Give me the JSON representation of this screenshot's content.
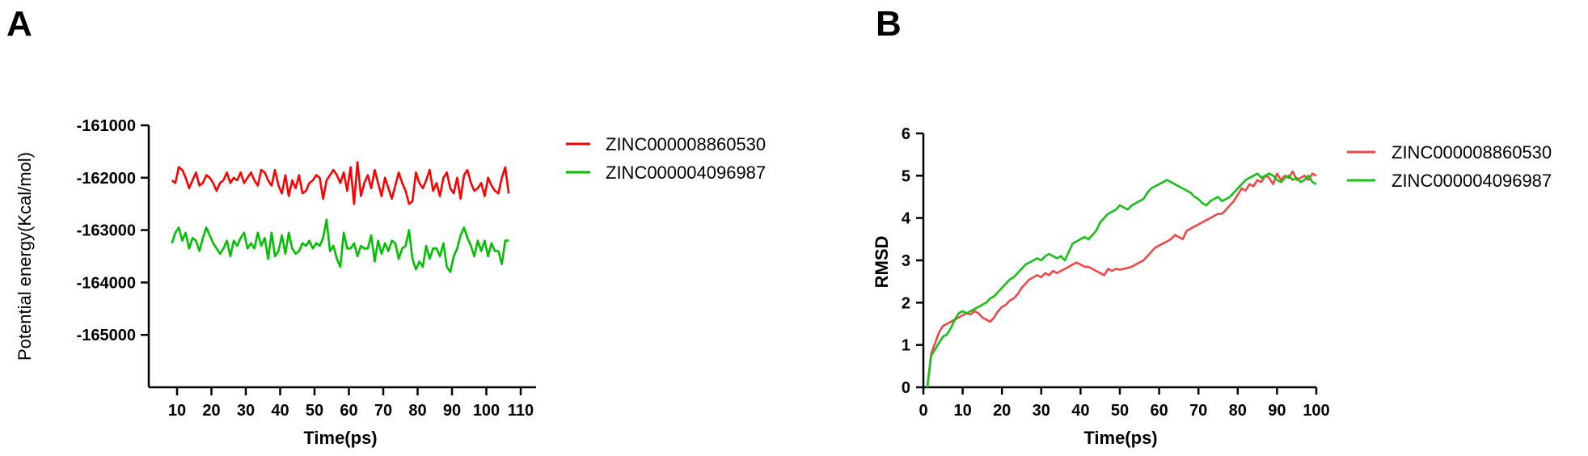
{
  "panels": {
    "a_letter": "A",
    "b_letter": "B"
  },
  "chart_data": [
    {
      "type": "line",
      "panel": "A",
      "xlabel": "Time(ps)",
      "ylabel": "Potential energy(Kcal/mol)",
      "xlim": [
        0,
        110
      ],
      "ylim": [
        -166000,
        -161000
      ],
      "xticks": [
        10,
        20,
        30,
        40,
        50,
        60,
        70,
        80,
        90,
        100,
        110
      ],
      "yticks": [
        -161000,
        -162000,
        -163000,
        -164000,
        -165000
      ],
      "legend_position": "right",
      "series": [
        {
          "name": "ZINC000008860530",
          "color": "#ff0000",
          "x": [
            8.5,
            9.5,
            10.5,
            11.5,
            12.5,
            13.5,
            14.5,
            15.5,
            16.5,
            17.5,
            18.5,
            19.5,
            20.5,
            21.5,
            22.5,
            23.5,
            24.5,
            25.5,
            26.5,
            27.5,
            28.5,
            29.5,
            30.5,
            31.5,
            32.5,
            33.5,
            34.5,
            35.5,
            36.5,
            37.5,
            38.5,
            39.5,
            40.5,
            41.5,
            42.5,
            43.5,
            44.5,
            45.5,
            46.5,
            47.5,
            48.5,
            49.5,
            50.5,
            51.5,
            52.5,
            53.5,
            54.5,
            55.5,
            56.5,
            57.5,
            58.5,
            59.5,
            60.5,
            61.5,
            62.5,
            63.5,
            64.5,
            65.5,
            66.5,
            67.5,
            68.5,
            69.5,
            70.5,
            71.5,
            72.5,
            73.5,
            74.5,
            75.5,
            76.5,
            77.5,
            78.5,
            79.5,
            80.5,
            81.5,
            82.5,
            83.5,
            84.5,
            85.5,
            86.5,
            87.5,
            88.5,
            89.5,
            90.5,
            91.5,
            92.5,
            93.5,
            94.5,
            95.5,
            96.5,
            97.5,
            98.5,
            99.5,
            100.5,
            101.5,
            102.5,
            103.5,
            104.5,
            105.5,
            106.5
          ],
          "values": [
            -162050,
            -162100,
            -161800,
            -161850,
            -162000,
            -162200,
            -162050,
            -161900,
            -162150,
            -162100,
            -161950,
            -162000,
            -162100,
            -162250,
            -162100,
            -162050,
            -161900,
            -162100,
            -162000,
            -162050,
            -161900,
            -162100,
            -162000,
            -161900,
            -162050,
            -162150,
            -161850,
            -161900,
            -162050,
            -162150,
            -161850,
            -162150,
            -162300,
            -161950,
            -162350,
            -162050,
            -162200,
            -161950,
            -162300,
            -162250,
            -162100,
            -162050,
            -161950,
            -162000,
            -162400,
            -162050,
            -161950,
            -161850,
            -161950,
            -162100,
            -161900,
            -162250,
            -161800,
            -162500,
            -161700,
            -162350,
            -162100,
            -161950,
            -162200,
            -161850,
            -162100,
            -162350,
            -162000,
            -162200,
            -162400,
            -162150,
            -161900,
            -162100,
            -162250,
            -162500,
            -162450,
            -161900,
            -162100,
            -162200,
            -162050,
            -161850,
            -162250,
            -162100,
            -162350,
            -162000,
            -161900,
            -162200,
            -162300,
            -162000,
            -162400,
            -161950,
            -161850,
            -162100,
            -162250,
            -162200,
            -162100,
            -162350,
            -162000,
            -162150,
            -162250,
            -162300,
            -162000,
            -161800,
            -162300
          ]
        },
        {
          "name": "ZINC000004096987",
          "color": "#00c000",
          "x": [
            8.5,
            9.5,
            10.5,
            11.5,
            12.5,
            13.5,
            14.5,
            15.5,
            16.5,
            17.5,
            18.5,
            19.5,
            20.5,
            21.5,
            22.5,
            23.5,
            24.5,
            25.5,
            26.5,
            27.5,
            28.5,
            29.5,
            30.5,
            31.5,
            32.5,
            33.5,
            34.5,
            35.5,
            36.5,
            37.5,
            38.5,
            39.5,
            40.5,
            41.5,
            42.5,
            43.5,
            44.5,
            45.5,
            46.5,
            47.5,
            48.5,
            49.5,
            50.5,
            51.5,
            52.5,
            53.5,
            54.5,
            55.5,
            56.5,
            57.5,
            58.5,
            59.5,
            60.5,
            61.5,
            62.5,
            63.5,
            64.5,
            65.5,
            66.5,
            67.5,
            68.5,
            69.5,
            70.5,
            71.5,
            72.5,
            73.5,
            74.5,
            75.5,
            76.5,
            77.5,
            78.5,
            79.5,
            80.5,
            81.5,
            82.5,
            83.5,
            84.5,
            85.5,
            86.5,
            87.5,
            88.5,
            89.5,
            90.5,
            91.5,
            92.5,
            93.5,
            94.5,
            95.5,
            96.5,
            97.5,
            98.5,
            99.5,
            100.5,
            101.5,
            102.5,
            103.5,
            104.5,
            105.5,
            106.5
          ],
          "values": [
            -163250,
            -163050,
            -162950,
            -163200,
            -163050,
            -163350,
            -163150,
            -163200,
            -163400,
            -163150,
            -162950,
            -163100,
            -163250,
            -163350,
            -163450,
            -163350,
            -163200,
            -163500,
            -163200,
            -163300,
            -163150,
            -163050,
            -163350,
            -163250,
            -163350,
            -163050,
            -163300,
            -163150,
            -163550,
            -163050,
            -163500,
            -163400,
            -163100,
            -163450,
            -163050,
            -163350,
            -163450,
            -163400,
            -163250,
            -163300,
            -163200,
            -163350,
            -163250,
            -163300,
            -163150,
            -162800,
            -163400,
            -163300,
            -163550,
            -163700,
            -163050,
            -163350,
            -163350,
            -163250,
            -163500,
            -163300,
            -163350,
            -163350,
            -163100,
            -163600,
            -163200,
            -163450,
            -163250,
            -163400,
            -163200,
            -163250,
            -163550,
            -163350,
            -163300,
            -163000,
            -163550,
            -163750,
            -163600,
            -163700,
            -163300,
            -163550,
            -163350,
            -163350,
            -163500,
            -163250,
            -163700,
            -163800,
            -163500,
            -163350,
            -163100,
            -162950,
            -163150,
            -163300,
            -163500,
            -163200,
            -163400,
            -163200,
            -163500,
            -163250,
            -163400,
            -163400,
            -163650,
            -163200,
            -163200
          ]
        }
      ]
    },
    {
      "type": "line",
      "panel": "B",
      "xlabel": "Time(ps)",
      "ylabel": "RMSD",
      "xlim": [
        0,
        100
      ],
      "ylim": [
        0,
        6
      ],
      "xticks": [
        0,
        10,
        20,
        30,
        40,
        50,
        60,
        70,
        80,
        90,
        100
      ],
      "yticks": [
        0,
        1,
        2,
        3,
        4,
        5,
        6
      ],
      "legend_position": "right",
      "series": [
        {
          "name": "ZINC000008860530",
          "color": "#f04848",
          "x": [
            1,
            2,
            3,
            4,
            5,
            6,
            7,
            8,
            9,
            10,
            11,
            12,
            13,
            14,
            15,
            16,
            17,
            18,
            19,
            20,
            21,
            22,
            23,
            24,
            25,
            26,
            27,
            28,
            29,
            30,
            31,
            32,
            33,
            34,
            35,
            36,
            37,
            38,
            39,
            40,
            41,
            42,
            43,
            44,
            45,
            46,
            47,
            48,
            49,
            50,
            51,
            52,
            53,
            54,
            55,
            56,
            57,
            58,
            59,
            60,
            61,
            62,
            63,
            64,
            65,
            66,
            67,
            68,
            69,
            70,
            71,
            72,
            73,
            74,
            75,
            76,
            77,
            78,
            79,
            80,
            81,
            82,
            83,
            84,
            85,
            86,
            87,
            88,
            89,
            90,
            91,
            92,
            93,
            94,
            95,
            96,
            97,
            98,
            99,
            100
          ],
          "values": [
            0.0,
            0.8,
            1.05,
            1.3,
            1.45,
            1.5,
            1.55,
            1.6,
            1.65,
            1.7,
            1.75,
            1.72,
            1.8,
            1.75,
            1.65,
            1.6,
            1.55,
            1.65,
            1.8,
            1.9,
            1.95,
            2.05,
            2.1,
            2.2,
            2.35,
            2.45,
            2.55,
            2.6,
            2.65,
            2.6,
            2.7,
            2.65,
            2.75,
            2.7,
            2.75,
            2.8,
            2.85,
            2.9,
            2.95,
            2.9,
            2.85,
            2.85,
            2.8,
            2.75,
            2.7,
            2.65,
            2.8,
            2.75,
            2.8,
            2.78,
            2.8,
            2.82,
            2.85,
            2.9,
            2.95,
            3.0,
            3.1,
            3.2,
            3.3,
            3.35,
            3.4,
            3.45,
            3.5,
            3.6,
            3.55,
            3.5,
            3.7,
            3.75,
            3.8,
            3.85,
            3.9,
            3.95,
            4.0,
            4.05,
            4.1,
            4.1,
            4.2,
            4.3,
            4.4,
            4.55,
            4.7,
            4.65,
            4.8,
            4.75,
            4.9,
            4.85,
            5.0,
            4.95,
            4.8,
            5.05,
            4.9,
            5.0,
            4.95,
            5.1,
            4.9,
            4.95,
            5.0,
            4.9,
            5.05,
            5.0
          ]
        },
        {
          "name": "ZINC000004096987",
          "color": "#18c018",
          "x": [
            1,
            2,
            3,
            4,
            5,
            6,
            7,
            8,
            9,
            10,
            11,
            12,
            13,
            14,
            15,
            16,
            17,
            18,
            19,
            20,
            21,
            22,
            23,
            24,
            25,
            26,
            27,
            28,
            29,
            30,
            31,
            32,
            33,
            34,
            35,
            36,
            37,
            38,
            39,
            40,
            41,
            42,
            43,
            44,
            45,
            46,
            47,
            48,
            49,
            50,
            51,
            52,
            53,
            54,
            55,
            56,
            57,
            58,
            59,
            60,
            61,
            62,
            63,
            64,
            65,
            66,
            67,
            68,
            69,
            70,
            71,
            72,
            73,
            74,
            75,
            76,
            77,
            78,
            79,
            80,
            81,
            82,
            83,
            84,
            85,
            86,
            87,
            88,
            89,
            90,
            91,
            92,
            93,
            94,
            95,
            96,
            97,
            98,
            99,
            100
          ],
          "values": [
            0.0,
            0.75,
            0.9,
            1.05,
            1.2,
            1.25,
            1.4,
            1.6,
            1.75,
            1.8,
            1.75,
            1.8,
            1.85,
            1.9,
            1.95,
            2.0,
            2.1,
            2.15,
            2.25,
            2.35,
            2.45,
            2.55,
            2.6,
            2.7,
            2.8,
            2.9,
            2.95,
            3.0,
            3.05,
            3.0,
            3.1,
            3.15,
            3.1,
            3.05,
            3.1,
            3.0,
            3.2,
            3.4,
            3.45,
            3.5,
            3.55,
            3.5,
            3.6,
            3.7,
            3.9,
            4.0,
            4.1,
            4.15,
            4.2,
            4.3,
            4.25,
            4.2,
            4.3,
            4.35,
            4.4,
            4.45,
            4.6,
            4.7,
            4.75,
            4.8,
            4.85,
            4.9,
            4.85,
            4.8,
            4.75,
            4.7,
            4.65,
            4.6,
            4.5,
            4.45,
            4.35,
            4.3,
            4.4,
            4.45,
            4.5,
            4.4,
            4.45,
            4.5,
            4.6,
            4.7,
            4.8,
            4.9,
            4.95,
            5.0,
            5.05,
            4.95,
            5.0,
            5.05,
            5.0,
            4.9,
            4.85,
            4.95,
            5.0,
            4.9,
            4.95,
            4.85,
            4.9,
            5.0,
            4.85,
            4.8
          ]
        }
      ]
    }
  ]
}
